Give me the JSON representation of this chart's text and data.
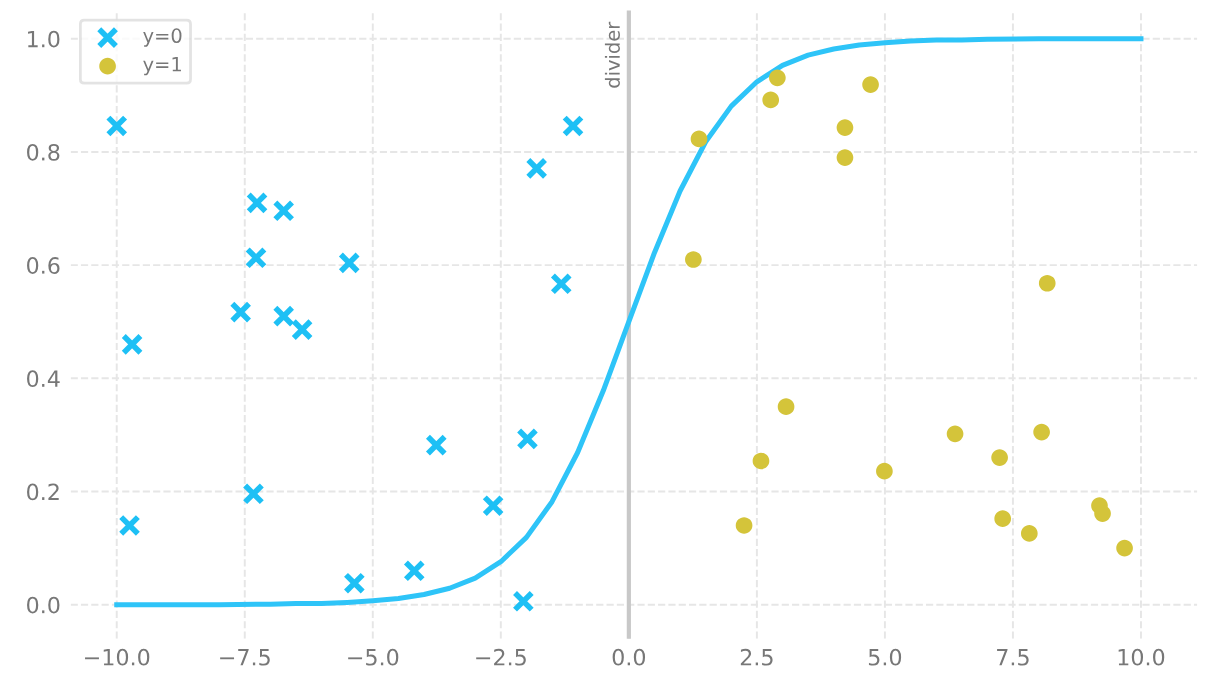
{
  "chart_data": {
    "type": "scatter",
    "xlim": [
      -10.9,
      11.1
    ],
    "ylim": [
      -0.06,
      1.05
    ],
    "xticks": [
      {
        "value": -10,
        "label": "−10.0"
      },
      {
        "value": -7.5,
        "label": "−7.5"
      },
      {
        "value": -5,
        "label": "−5.0"
      },
      {
        "value": -2.5,
        "label": "−2.5"
      },
      {
        "value": 0,
        "label": "0.0"
      },
      {
        "value": 2.5,
        "label": "2.5"
      },
      {
        "value": 5,
        "label": "5.0"
      },
      {
        "value": 7.5,
        "label": "7.5"
      },
      {
        "value": 10,
        "label": "10.0"
      }
    ],
    "yticks": [
      {
        "value": 0,
        "label": "0.0"
      },
      {
        "value": 0.2,
        "label": "0.2"
      },
      {
        "value": 0.4,
        "label": "0.4"
      },
      {
        "value": 0.6,
        "label": "0.6"
      },
      {
        "value": 0.8,
        "label": "0.8"
      },
      {
        "value": 1,
        "label": "1.0"
      }
    ],
    "grid": true,
    "legend": "top left",
    "series": [
      {
        "name": "y=0",
        "marker": "cross",
        "color": "#1ec0f5",
        "x": [
          -10.0,
          -9.7,
          -9.75,
          -7.26,
          -6.74,
          -7.28,
          -7.58,
          -6.74,
          -6.38,
          -5.46,
          -7.33,
          -5.36,
          -4.19,
          -3.76,
          -2.65,
          -1.98,
          -2.06,
          -1.8,
          -1.09,
          -1.32
        ],
        "values": [
          0.846,
          0.46,
          0.14,
          0.71,
          0.696,
          0.613,
          0.517,
          0.51,
          0.486,
          0.604,
          0.196,
          0.038,
          0.06,
          0.282,
          0.175,
          0.293,
          0.006,
          0.771,
          0.846,
          0.567
        ]
      },
      {
        "name": "y=1",
        "marker": "circle",
        "color": "#d4c43a",
        "x": [
          1.37,
          1.26,
          2.9,
          2.77,
          4.72,
          4.22,
          4.22,
          8.17,
          3.07,
          2.58,
          2.25,
          4.99,
          6.37,
          7.24,
          8.06,
          7.3,
          7.82,
          9.19,
          9.25,
          9.68
        ],
        "values": [
          0.823,
          0.61,
          0.931,
          0.892,
          0.919,
          0.843,
          0.79,
          0.568,
          0.35,
          0.254,
          0.14,
          0.236,
          0.302,
          0.26,
          0.305,
          0.152,
          0.126,
          0.175,
          0.161,
          0.1
        ]
      },
      {
        "type": "line",
        "marker": "none",
        "line_style": "solid",
        "color": "#2ec4f8",
        "x": [
          -10,
          -9,
          -8,
          -7,
          -6.5,
          -6,
          -5.5,
          -5,
          -4.5,
          -4,
          -3.5,
          -3,
          -2.5,
          -2,
          -1.5,
          -1,
          -0.5,
          0,
          0.5,
          1,
          1.5,
          2,
          2.5,
          3,
          3.5,
          4,
          4.5,
          5,
          5.5,
          6,
          6.5,
          7,
          8,
          9,
          10
        ],
        "values": [
          0.0,
          0.0,
          0.0,
          0.001,
          0.002,
          0.002,
          0.004,
          0.007,
          0.011,
          0.018,
          0.029,
          0.047,
          0.076,
          0.119,
          0.182,
          0.269,
          0.378,
          0.5,
          0.622,
          0.731,
          0.818,
          0.881,
          0.924,
          0.953,
          0.971,
          0.982,
          0.989,
          0.993,
          0.996,
          0.998,
          0.998,
          0.999,
          1.0,
          1.0,
          1.0
        ]
      }
    ],
    "ref_lines": [
      {
        "axis": "x",
        "value": 0,
        "label": "divider",
        "color": "#c8c8c8",
        "line_style": "solid"
      }
    ]
  }
}
